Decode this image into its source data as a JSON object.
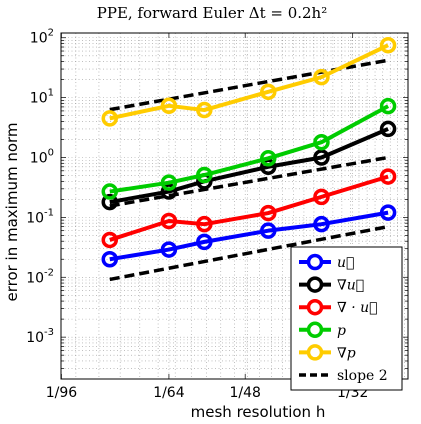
{
  "chart_data": {
    "type": "line",
    "title": "PPE, forward Euler Δt = 0.2h²",
    "xlabel": "mesh resolution h",
    "ylabel": "error in maximum norm",
    "xscale": "log",
    "yscale": "log",
    "x_axis_quantity": "h",
    "xlim": [
      0.0104,
      0.0385
    ],
    "ylim": [
      0.0002,
      120
    ],
    "grid": true,
    "x_ticks": [
      {
        "label": "1/96",
        "value": 0.010417
      },
      {
        "label": "1/64",
        "value": 0.015625
      },
      {
        "label": "1/48",
        "value": 0.020833
      },
      {
        "label": "1/32",
        "value": 0.03125
      }
    ],
    "y_ticks": [
      {
        "base": "10",
        "exp": "-3",
        "value": 0.001
      },
      {
        "base": "10",
        "exp": "-2",
        "value": 0.01
      },
      {
        "base": "10",
        "exp": "-1",
        "value": 0.1
      },
      {
        "base": "10",
        "exp": "0",
        "value": 1
      },
      {
        "base": "10",
        "exp": "1",
        "value": 10
      },
      {
        "base": "10",
        "exp": "2",
        "value": 100
      }
    ],
    "x": [
      0.0125,
      0.015625,
      0.017857,
      0.022727,
      0.027778,
      0.035714
    ],
    "series": [
      {
        "name": "u⃗",
        "color": "#0000ff",
        "values": [
          0.02,
          0.029,
          0.039,
          0.06,
          0.077,
          0.12
        ]
      },
      {
        "name": "∇u⃗",
        "color": "#000000",
        "values": [
          0.18,
          0.27,
          0.4,
          0.7,
          1.0,
          3.0
        ]
      },
      {
        "name": "∇ · u⃗",
        "color": "#ff0000",
        "values": [
          0.042,
          0.087,
          0.077,
          0.118,
          0.22,
          0.48
        ]
      },
      {
        "name": "p",
        "color": "#00cc00",
        "values": [
          0.27,
          0.38,
          0.51,
          0.97,
          1.8,
          7.2
        ]
      },
      {
        "name": "∇p",
        "color": "#ffcc00",
        "values": [
          4.5,
          7.3,
          6.2,
          12.5,
          22.0,
          75.0
        ]
      }
    ],
    "slope_lines": [
      {
        "x": [
          0.0125,
          0.035714
        ],
        "values": [
          6.3,
          42
        ]
      },
      {
        "x": [
          0.0125,
          0.035714
        ],
        "values": [
          0.155,
          1.0
        ]
      },
      {
        "x": [
          0.0125,
          0.035714
        ],
        "values": [
          0.0092,
          0.07
        ]
      }
    ],
    "legend_position": "bottom-right",
    "legend": [
      {
        "label": "u⃗",
        "style": "marker",
        "color": "#0000ff"
      },
      {
        "label": "∇u⃗",
        "style": "marker",
        "color": "#000000"
      },
      {
        "label": "∇ · u⃗",
        "style": "marker",
        "color": "#ff0000"
      },
      {
        "label": "p",
        "style": "marker",
        "color": "#00cc00"
      },
      {
        "label": "∇p",
        "style": "marker",
        "color": "#ffcc00"
      },
      {
        "label": "slope 2",
        "style": "dashed",
        "color": "#000000"
      }
    ]
  }
}
